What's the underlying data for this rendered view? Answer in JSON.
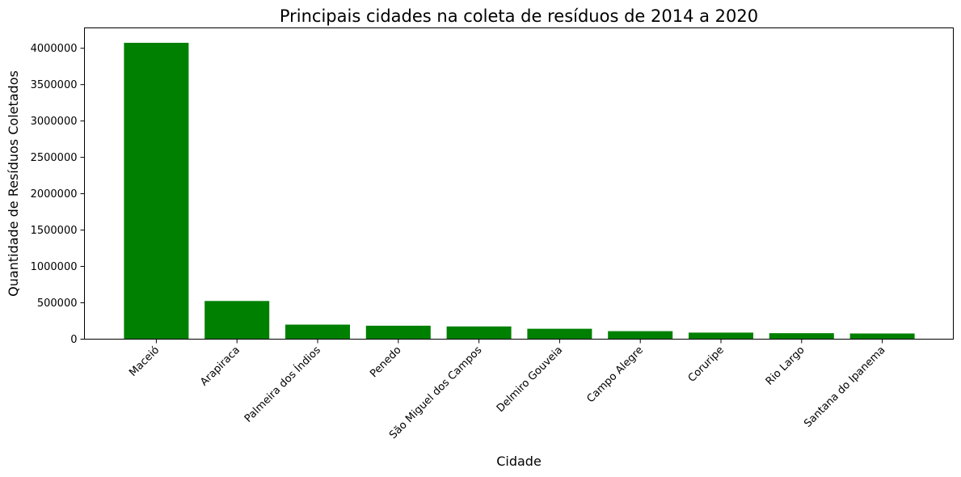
{
  "chart_data": {
    "type": "bar",
    "title": "Principais cidades na coleta de resíduos de 2014 a 2020",
    "xlabel": "Cidade",
    "ylabel": "Quantidade de Resíduos Coletados",
    "categories": [
      "Maceió",
      "Arapiraca",
      "Palmeira dos Índios",
      "Penedo",
      "São Miguel dos Campos",
      "Delmiro Gouveia",
      "Campo Alegre",
      "Coruripe",
      "Rio Largo",
      "Santana do Ipanema"
    ],
    "values": [
      4075000,
      525000,
      200000,
      185000,
      175000,
      143000,
      110000,
      90000,
      82000,
      78000
    ],
    "ylim": [
      0,
      4280000
    ],
    "yticks": [
      0,
      500000,
      1000000,
      1500000,
      2000000,
      2500000,
      3000000,
      3500000,
      4000000
    ],
    "ytick_labels": [
      "0",
      "500000",
      "1000000",
      "1500000",
      "2000000",
      "2500000",
      "3000000",
      "3500000",
      "4000000"
    ],
    "bar_color": "#008000",
    "grid": false,
    "legend": "none"
  }
}
